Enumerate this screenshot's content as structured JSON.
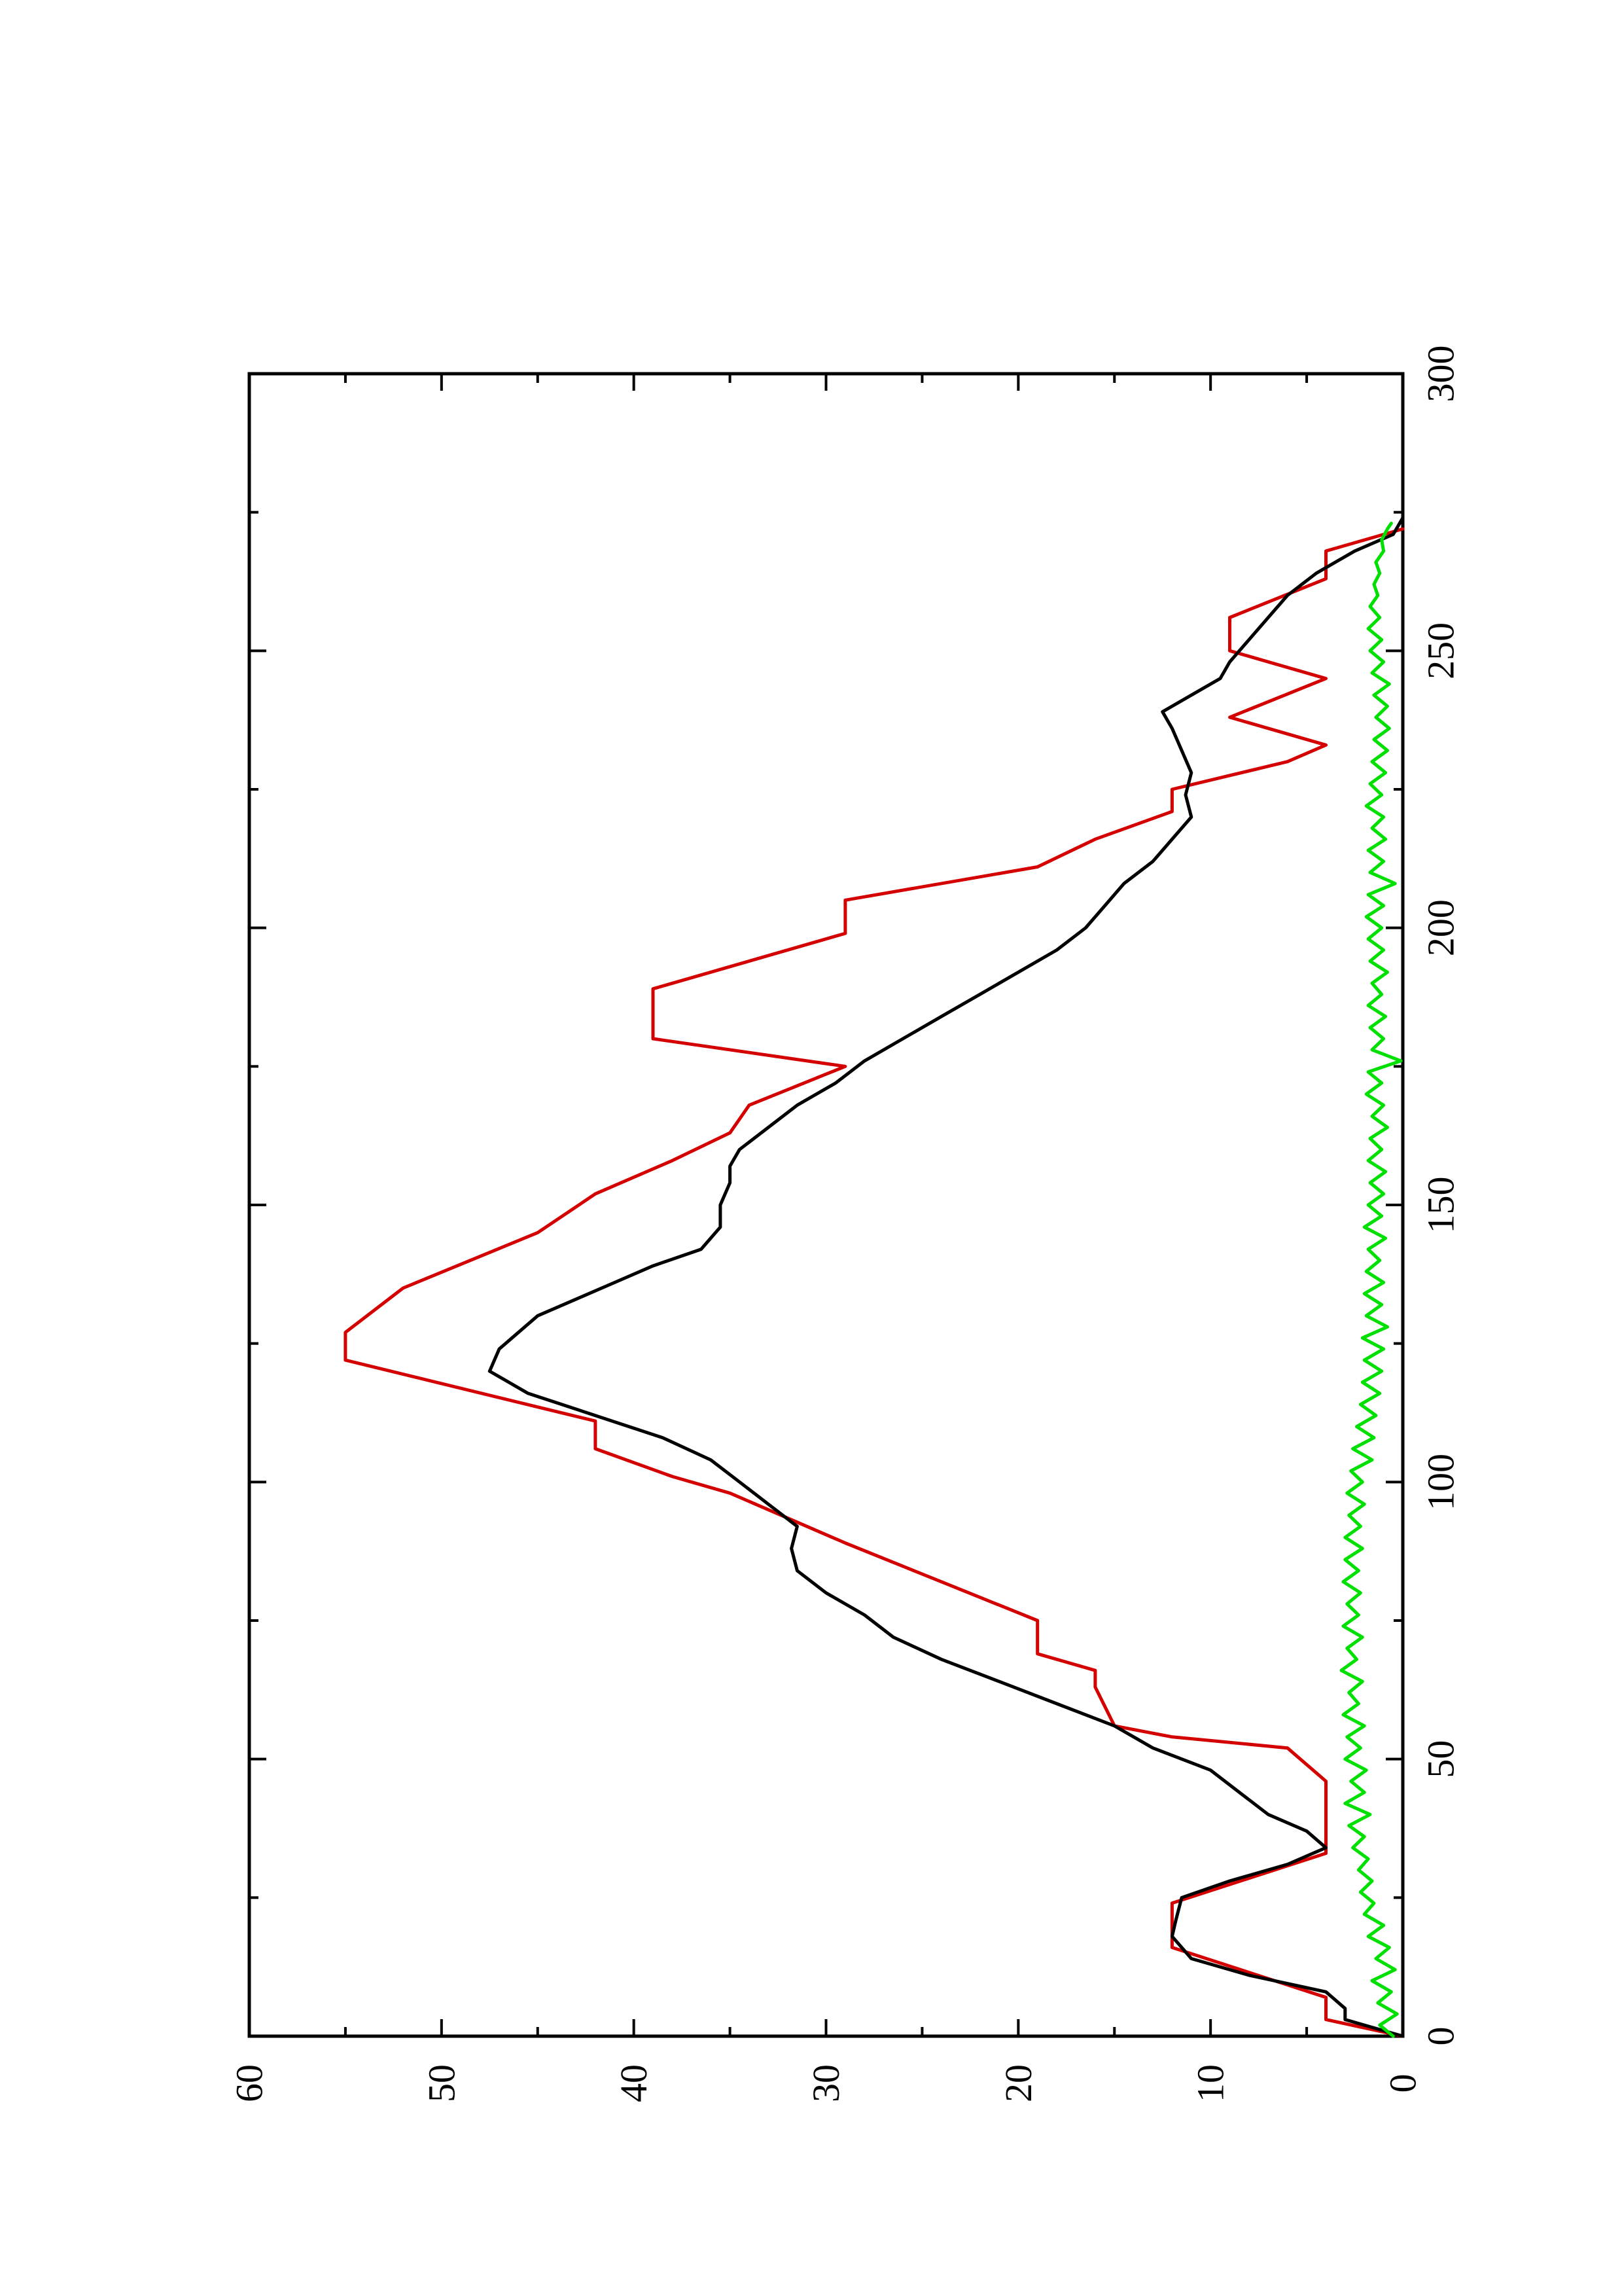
{
  "chart_data": {
    "type": "line",
    "orientation": "rotated-90-counterclockwise",
    "title": "",
    "xlabel": "",
    "ylabel": "",
    "xlim": [
      0,
      300
    ],
    "ylim": [
      0,
      60
    ],
    "x_ticks": [
      "0",
      "50",
      "100",
      "150",
      "200",
      "250",
      "300"
    ],
    "y_ticks": [
      "0",
      "10",
      "20",
      "30",
      "40",
      "50",
      "60"
    ],
    "grid": false,
    "legend": "none",
    "series": [
      {
        "color": "#d40000",
        "style": "step",
        "points": [
          [
            0,
            0
          ],
          [
            3,
            4
          ],
          [
            7,
            4
          ],
          [
            16,
            12
          ],
          [
            24,
            12
          ],
          [
            33,
            4
          ],
          [
            46,
            4
          ],
          [
            52,
            6
          ],
          [
            54,
            12
          ],
          [
            56,
            15
          ],
          [
            63,
            16
          ],
          [
            66,
            16
          ],
          [
            69,
            19
          ],
          [
            75,
            19
          ],
          [
            89,
            29
          ],
          [
            98,
            35
          ],
          [
            101,
            38
          ],
          [
            106,
            42
          ],
          [
            111,
            42
          ],
          [
            122,
            55
          ],
          [
            127,
            55
          ],
          [
            135,
            52
          ],
          [
            145,
            45
          ],
          [
            152,
            42
          ],
          [
            158,
            38
          ],
          [
            163,
            35
          ],
          [
            168,
            34
          ],
          [
            175,
            29
          ],
          [
            180,
            39
          ],
          [
            189,
            39
          ],
          [
            199,
            29
          ],
          [
            205,
            29
          ],
          [
            211,
            19
          ],
          [
            216,
            16
          ],
          [
            221,
            12
          ],
          [
            225,
            12
          ],
          [
            230,
            6
          ],
          [
            233,
            4
          ],
          [
            238,
            9
          ],
          [
            245,
            4
          ],
          [
            250,
            9
          ],
          [
            256,
            9
          ],
          [
            263,
            4
          ],
          [
            268,
            4
          ],
          [
            272,
            0
          ]
        ]
      },
      {
        "color": "#000000",
        "style": "line",
        "points": [
          [
            0,
            0
          ],
          [
            2,
            2
          ],
          [
            3,
            3
          ],
          [
            5,
            3
          ],
          [
            8,
            4
          ],
          [
            11,
            8
          ],
          [
            14,
            11
          ],
          [
            16,
            11.5
          ],
          [
            18,
            12
          ],
          [
            21,
            11.8
          ],
          [
            25,
            11.5
          ],
          [
            28,
            9
          ],
          [
            31,
            6
          ],
          [
            34,
            4
          ],
          [
            37,
            5
          ],
          [
            40,
            7
          ],
          [
            44,
            8.5
          ],
          [
            48,
            10
          ],
          [
            52,
            13
          ],
          [
            56,
            15
          ],
          [
            60,
            18
          ],
          [
            64,
            21
          ],
          [
            68,
            24
          ],
          [
            72,
            26.5
          ],
          [
            76,
            28
          ],
          [
            80,
            30
          ],
          [
            84,
            31.5
          ],
          [
            88,
            31.8
          ],
          [
            92,
            31.5
          ],
          [
            96,
            33
          ],
          [
            100,
            34.5
          ],
          [
            104,
            36
          ],
          [
            108,
            38.5
          ],
          [
            112,
            42
          ],
          [
            116,
            45.5
          ],
          [
            120,
            47.5
          ],
          [
            124,
            47
          ],
          [
            127,
            46
          ],
          [
            130,
            45
          ],
          [
            133,
            43
          ],
          [
            136,
            41
          ],
          [
            139,
            39
          ],
          [
            142,
            36.5
          ],
          [
            146,
            35.5
          ],
          [
            150,
            35.5
          ],
          [
            154,
            35
          ],
          [
            157,
            35
          ],
          [
            160,
            34.5
          ],
          [
            164,
            33
          ],
          [
            168,
            31.5
          ],
          [
            172,
            29.5
          ],
          [
            176,
            28
          ],
          [
            180,
            26
          ],
          [
            184,
            24
          ],
          [
            188,
            22
          ],
          [
            192,
            20
          ],
          [
            196,
            18
          ],
          [
            200,
            16.5
          ],
          [
            204,
            15.5
          ],
          [
            208,
            14.5
          ],
          [
            212,
            13
          ],
          [
            216,
            12
          ],
          [
            220,
            11
          ],
          [
            224,
            11.3
          ],
          [
            228,
            11
          ],
          [
            232,
            11.5
          ],
          [
            236,
            12
          ],
          [
            239,
            12.5
          ],
          [
            242,
            11
          ],
          [
            245,
            9.5
          ],
          [
            248,
            9
          ],
          [
            252,
            8
          ],
          [
            256,
            7
          ],
          [
            260,
            6
          ],
          [
            264,
            4.5
          ],
          [
            268,
            2.5
          ],
          [
            271,
            0.5
          ],
          [
            274,
            0
          ]
        ]
      },
      {
        "color": "#00e000",
        "style": "line",
        "points": [
          [
            0,
            0.5
          ],
          [
            2,
            1.2
          ],
          [
            4,
            0.3
          ],
          [
            6,
            1.3
          ],
          [
            8,
            0.6
          ],
          [
            10,
            1.6
          ],
          [
            12,
            0.4
          ],
          [
            14,
            1.4
          ],
          [
            16,
            0.7
          ],
          [
            18,
            1.8
          ],
          [
            20,
            1.0
          ],
          [
            22,
            2.0
          ],
          [
            24,
            1.5
          ],
          [
            26,
            2.2
          ],
          [
            28,
            1.6
          ],
          [
            30,
            2.3
          ],
          [
            32,
            1.8
          ],
          [
            34,
            2.6
          ],
          [
            36,
            2.0
          ],
          [
            38,
            2.8
          ],
          [
            40,
            1.7
          ],
          [
            42,
            3.0
          ],
          [
            44,
            2.0
          ],
          [
            46,
            2.7
          ],
          [
            48,
            1.9
          ],
          [
            50,
            3.0
          ],
          [
            52,
            2.2
          ],
          [
            54,
            2.9
          ],
          [
            56,
            2.0
          ],
          [
            58,
            3.1
          ],
          [
            60,
            2.3
          ],
          [
            62,
            2.8
          ],
          [
            64,
            2.1
          ],
          [
            66,
            3.2
          ],
          [
            68,
            2.4
          ],
          [
            70,
            2.9
          ],
          [
            72,
            2.1
          ],
          [
            74,
            3.1
          ],
          [
            76,
            2.3
          ],
          [
            78,
            2.9
          ],
          [
            80,
            2.2
          ],
          [
            82,
            3.1
          ],
          [
            84,
            2.3
          ],
          [
            86,
            3.0
          ],
          [
            88,
            2.1
          ],
          [
            90,
            3.0
          ],
          [
            92,
            2.2
          ],
          [
            94,
            2.8
          ],
          [
            96,
            2.0
          ],
          [
            98,
            2.9
          ],
          [
            100,
            2.1
          ],
          [
            102,
            2.7
          ],
          [
            104,
            1.6
          ],
          [
            106,
            2.6
          ],
          [
            108,
            1.5
          ],
          [
            110,
            2.4
          ],
          [
            112,
            1.4
          ],
          [
            114,
            2.2
          ],
          [
            116,
            1.2
          ],
          [
            118,
            2.1
          ],
          [
            120,
            1.1
          ],
          [
            122,
            2.0
          ],
          [
            124,
            1.0
          ],
          [
            126,
            2.1
          ],
          [
            128,
            0.8
          ],
          [
            130,
            1.9
          ],
          [
            132,
            1.1
          ],
          [
            134,
            2.0
          ],
          [
            136,
            1.0
          ],
          [
            138,
            1.9
          ],
          [
            140,
            1.2
          ],
          [
            142,
            1.8
          ],
          [
            144,
            0.9
          ],
          [
            146,
            2.0
          ],
          [
            148,
            1.1
          ],
          [
            150,
            1.8
          ],
          [
            152,
            1.0
          ],
          [
            154,
            1.7
          ],
          [
            156,
            0.9
          ],
          [
            158,
            1.8
          ],
          [
            160,
            1.1
          ],
          [
            162,
            1.7
          ],
          [
            164,
            0.8
          ],
          [
            166,
            1.6
          ],
          [
            168,
            1.0
          ],
          [
            170,
            1.9
          ],
          [
            172,
            1.1
          ],
          [
            174,
            1.8
          ],
          [
            176,
            0.1
          ],
          [
            178,
            1.6
          ],
          [
            180,
            1.0
          ],
          [
            182,
            1.7
          ],
          [
            184,
            0.9
          ],
          [
            186,
            1.8
          ],
          [
            188,
            1.1
          ],
          [
            190,
            1.6
          ],
          [
            192,
            0.8
          ],
          [
            194,
            1.7
          ],
          [
            196,
            1.0
          ],
          [
            198,
            1.8
          ],
          [
            200,
            1.1
          ],
          [
            202,
            1.9
          ],
          [
            204,
            1.0
          ],
          [
            206,
            1.8
          ],
          [
            208,
            0.4
          ],
          [
            210,
            1.7
          ],
          [
            212,
            1.0
          ],
          [
            214,
            1.8
          ],
          [
            216,
            0.9
          ],
          [
            218,
            1.6
          ],
          [
            220,
            1.0
          ],
          [
            222,
            1.9
          ],
          [
            224,
            1.1
          ],
          [
            226,
            1.7
          ],
          [
            228,
            0.9
          ],
          [
            230,
            1.6
          ],
          [
            232,
            0.8
          ],
          [
            234,
            1.5
          ],
          [
            236,
            0.7
          ],
          [
            238,
            1.4
          ],
          [
            240,
            0.8
          ],
          [
            242,
            1.5
          ],
          [
            244,
            0.7
          ],
          [
            246,
            1.6
          ],
          [
            248,
            1.0
          ],
          [
            250,
            1.7
          ],
          [
            252,
            1.1
          ],
          [
            254,
            1.8
          ],
          [
            256,
            1.2
          ],
          [
            258,
            1.7
          ],
          [
            260,
            1.3
          ],
          [
            262,
            1.5
          ],
          [
            264,
            1.2
          ],
          [
            266,
            1.4
          ],
          [
            268,
            1.0
          ],
          [
            270,
            1.1
          ],
          [
            272,
            0.8
          ],
          [
            273,
            0.6
          ]
        ]
      }
    ]
  }
}
